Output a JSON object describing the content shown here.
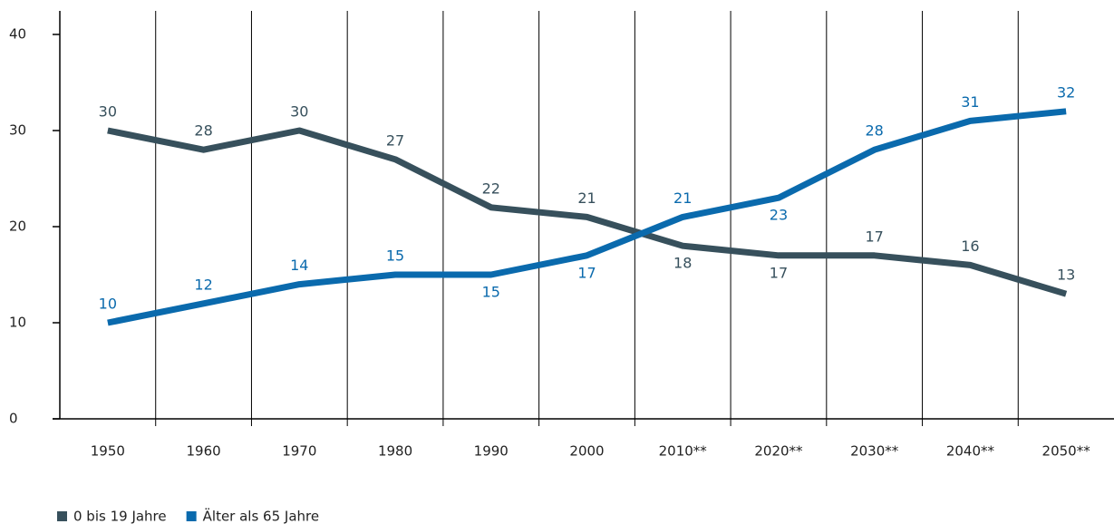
{
  "chart_data": {
    "type": "line",
    "categories": [
      "1950",
      "1960",
      "1970",
      "1980",
      "1990",
      "2000",
      "2010**",
      "2020**",
      "2030**",
      "2040**",
      "2050**"
    ],
    "series": [
      {
        "name": "0 bis 19 Jahre",
        "color": "#37505c",
        "values": [
          30,
          28,
          30,
          27,
          22,
          21,
          18,
          17,
          17,
          16,
          13
        ]
      },
      {
        "name": "Älter als 65 Jahre",
        "color": "#0a6aad",
        "values": [
          10,
          12,
          14,
          15,
          15,
          17,
          21,
          23,
          28,
          31,
          32
        ]
      }
    ],
    "ylim": [
      0,
      40
    ],
    "yticks": [
      0,
      10,
      20,
      30,
      40
    ],
    "grid": true
  }
}
